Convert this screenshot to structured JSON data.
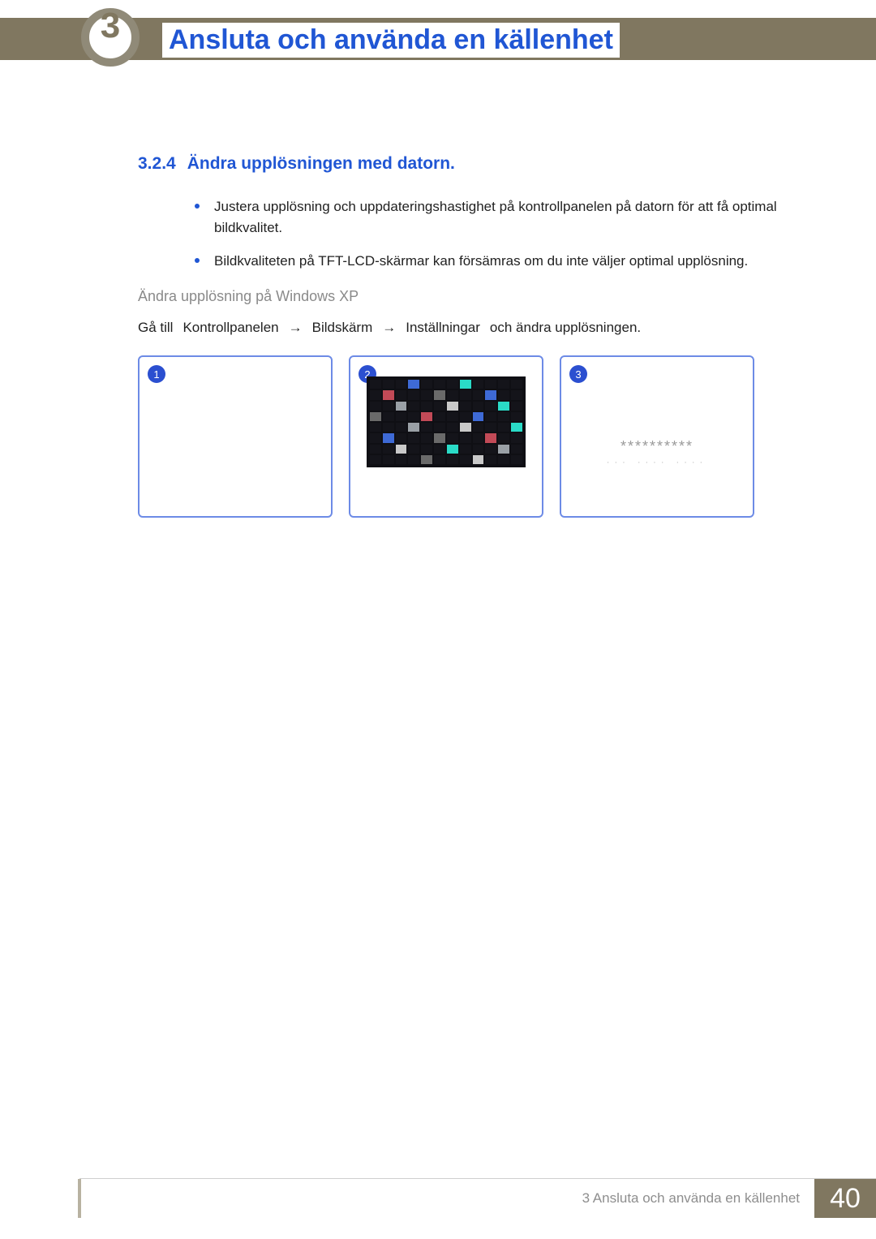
{
  "chapter_number": "3",
  "header_title": "Ansluta och använda en källenhet",
  "section": {
    "number": "3.2.4",
    "title": "Ändra upplösningen med datorn."
  },
  "bullets": [
    "Justera upplösning och uppdateringshastighet på kontrollpanelen på datorn för att få optimal bildkvalitet.",
    "Bildkvaliteten på TFT-LCD-skärmar kan försämras om du inte väljer optimal upplösning."
  ],
  "subsection_title": "Ändra upplösning på Windows XP",
  "steps": {
    "prefix": "Gå till",
    "items": [
      "Kontrollpanelen",
      "Bildskärm",
      "Inställningar"
    ],
    "suffix": "och ändra upplösningen.",
    "arrow": "→"
  },
  "panels": {
    "badges": [
      "1",
      "2",
      "3"
    ],
    "panel2_mosaic_highlights": {
      "cells": [
        {
          "r": 0,
          "c": 3,
          "color": "#3e6ad6"
        },
        {
          "r": 0,
          "c": 7,
          "color": "#2adbc7"
        },
        {
          "r": 1,
          "c": 1,
          "color": "#c24a57"
        },
        {
          "r": 1,
          "c": 5,
          "color": "#6a6a6a"
        },
        {
          "r": 1,
          "c": 9,
          "color": "#3e6ad6"
        },
        {
          "r": 2,
          "c": 2,
          "color": "#9aa0a6"
        },
        {
          "r": 2,
          "c": 6,
          "color": "#c9c9c9"
        },
        {
          "r": 2,
          "c": 10,
          "color": "#2adbc7"
        },
        {
          "r": 3,
          "c": 0,
          "color": "#6a6a6a"
        },
        {
          "r": 3,
          "c": 4,
          "color": "#c24a57"
        },
        {
          "r": 3,
          "c": 8,
          "color": "#3e6ad6"
        },
        {
          "r": 4,
          "c": 3,
          "color": "#9aa0a6"
        },
        {
          "r": 4,
          "c": 7,
          "color": "#c9c9c9"
        },
        {
          "r": 4,
          "c": 11,
          "color": "#2adbc7"
        },
        {
          "r": 5,
          "c": 1,
          "color": "#3e6ad6"
        },
        {
          "r": 5,
          "c": 5,
          "color": "#6a6a6a"
        },
        {
          "r": 5,
          "c": 9,
          "color": "#c24a57"
        },
        {
          "r": 6,
          "c": 2,
          "color": "#c9c9c9"
        },
        {
          "r": 6,
          "c": 6,
          "color": "#2adbc7"
        },
        {
          "r": 6,
          "c": 10,
          "color": "#9aa0a6"
        },
        {
          "r": 7,
          "c": 4,
          "color": "#6a6a6a"
        },
        {
          "r": 7,
          "c": 8,
          "color": "#c9c9c9"
        }
      ]
    },
    "panel3_dots1": "**********",
    "panel3_dots2": "···  ····  ····"
  },
  "footer": {
    "label": "3 Ansluta och använda en källenhet",
    "page": "40"
  },
  "colors": {
    "accent_blue": "#2056d4",
    "header_bar": "#807760",
    "panel_border": "#6d8be6",
    "page_bg": "#807760"
  }
}
